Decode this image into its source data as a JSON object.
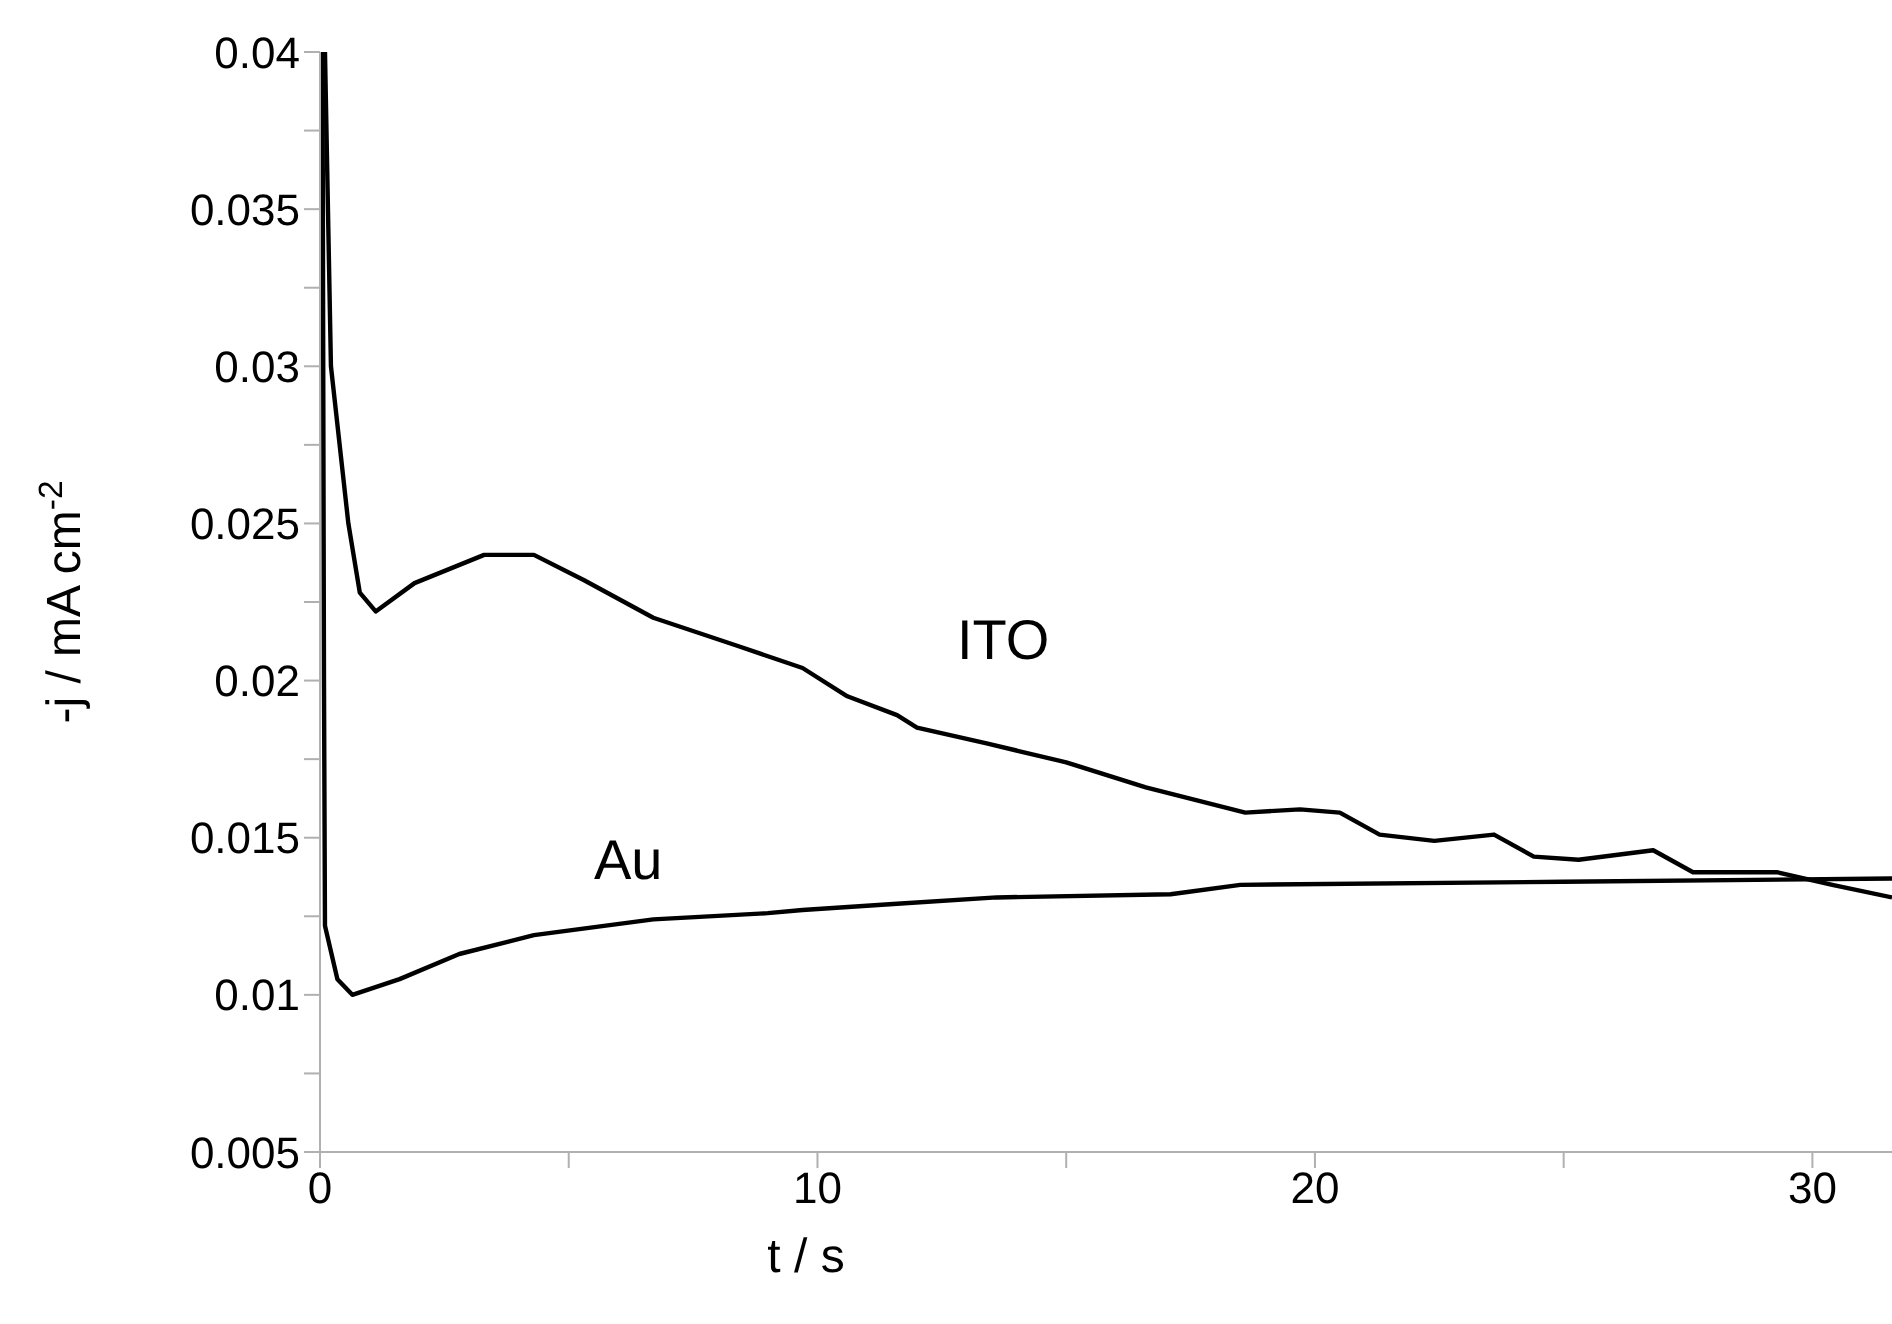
{
  "chart_data": {
    "type": "line",
    "xlabel": "t / s",
    "ylabel": "-j / mA cm$^{-2}$",
    "marker": "none",
    "line_style": "solid",
    "xlim": [
      0,
      31.6
    ],
    "ylim": [
      0.005,
      0.04
    ],
    "xticks": [
      0,
      {
        "value": 5,
        "label": null
      },
      10,
      {
        "value": 15,
        "label": null
      },
      20,
      {
        "value": 25,
        "label": null
      },
      30
    ],
    "yticks": [
      0.005,
      {
        "value": 0.0075,
        "label": null
      },
      0.01,
      {
        "value": 0.0125,
        "label": null
      },
      0.015,
      {
        "value": 0.0175,
        "label": null
      },
      0.02,
      {
        "value": 0.0225,
        "label": null
      },
      0.025,
      {
        "value": 0.0275,
        "label": null
      },
      0.03,
      {
        "value": 0.0325,
        "label": null
      },
      0.035,
      {
        "value": 0.0375,
        "label": null
      },
      0.04
    ],
    "series": [
      {
        "name": "ITO",
        "color": "#000000",
        "x": [
          0.1,
          0.22,
          0.57,
          0.8,
          1.12,
          1.9,
          3.3,
          4.3,
          5.3,
          6.7,
          8.4,
          9.7,
          10.6,
          11.6,
          12.0,
          13.4,
          15.0,
          16.6,
          18.6,
          19.7,
          20.5,
          21.3,
          22.4,
          23.6,
          24.4,
          25.3,
          26.8,
          27.6,
          29.3,
          30.4,
          31.6
        ],
        "values": [
          0.04,
          0.03,
          0.025,
          0.0228,
          0.0222,
          0.0231,
          0.024,
          0.024,
          0.0232,
          0.022,
          0.0211,
          0.0204,
          0.0195,
          0.0189,
          0.0185,
          0.018,
          0.0174,
          0.0166,
          0.0158,
          0.0159,
          0.0158,
          0.0151,
          0.0149,
          0.0151,
          0.0144,
          0.0143,
          0.0146,
          0.0139,
          0.0139,
          0.0135,
          0.0131
        ]
      },
      {
        "name": "Au",
        "color": "#000000",
        "x": [
          0.05,
          0.08,
          0.1,
          0.35,
          0.65,
          1.6,
          2.8,
          4.3,
          6.7,
          9.0,
          9.7,
          11.6,
          13.6,
          17.1,
          18.5,
          25,
          31.6
        ],
        "values": [
          0.04,
          0.02,
          0.0122,
          0.0105,
          0.01,
          0.0105,
          0.0113,
          0.0119,
          0.0124,
          0.0126,
          0.0127,
          0.0129,
          0.0131,
          0.0132,
          0.0135,
          0.0136,
          0.0137
        ]
      }
    ]
  }
}
